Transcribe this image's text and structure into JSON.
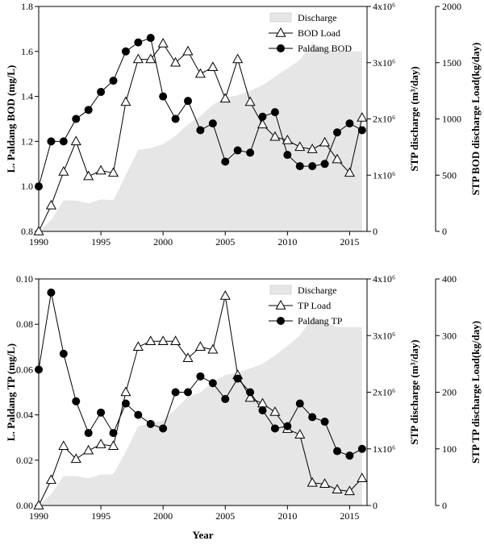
{
  "chart_data": [
    {
      "type": "line",
      "x": [
        1990,
        1991,
        1992,
        1993,
        1994,
        1995,
        1996,
        1997,
        1998,
        1999,
        2000,
        2001,
        2002,
        2003,
        2004,
        2005,
        2006,
        2007,
        2008,
        2009,
        2010,
        2011,
        2012,
        2013,
        2014,
        2015,
        2016
      ],
      "xlim": [
        1990,
        2016.4
      ],
      "xticks": [
        1990,
        1995,
        2000,
        2005,
        2010,
        2015
      ],
      "ylabel": "L. Paldang BOD (mg/L)",
      "ylim": [
        0.8,
        1.8
      ],
      "yticks": [
        "0.8",
        "1.0",
        "1.2",
        "1.4",
        "1.6",
        "1.8"
      ],
      "y2label": "STP discharge (m³/day)",
      "y2ticks": [
        "0",
        "1x10⁶",
        "2x10⁶",
        "3x10⁶",
        "4x10⁶"
      ],
      "y3label": "STP BOD discharge Load(kg/day)",
      "y3lim": [
        0,
        2000
      ],
      "y3ticks": [
        "0",
        "500",
        "1000",
        "1500",
        "2000"
      ],
      "legend_position": "top-right",
      "legend": [
        "Discharge",
        "BOD Load",
        "Paldang BOD"
      ],
      "series": [
        {
          "name": "Discharge",
          "axis": "y2",
          "marker": "area",
          "color": "#e6e6e6",
          "values": [
            0,
            0.2,
            0.55,
            0.55,
            0.5,
            0.57,
            0.55,
            1.0,
            1.45,
            1.48,
            1.55,
            1.7,
            1.9,
            2.05,
            2.25,
            2.38,
            2.42,
            2.5,
            2.6,
            2.75,
            2.9,
            3.05,
            3.35,
            3.25,
            3.2,
            3.2,
            3.2
          ]
        },
        {
          "name": "BOD Load",
          "axis": "y3",
          "marker": "open-triangle",
          "values": [
            0,
            230,
            530,
            800,
            490,
            540,
            520,
            1150,
            1530,
            1530,
            1670,
            1500,
            1600,
            1400,
            1460,
            1180,
            1530,
            1150,
            950,
            840,
            810,
            750,
            730,
            790,
            640,
            520,
            1010
          ]
        },
        {
          "name": "Paldang BOD",
          "axis": "y",
          "marker": "filled-circle",
          "values": [
            1.0,
            1.2,
            1.2,
            1.3,
            1.34,
            1.42,
            1.47,
            1.6,
            1.64,
            1.66,
            1.4,
            1.3,
            1.38,
            1.25,
            1.28,
            1.11,
            1.16,
            1.15,
            1.31,
            1.33,
            1.14,
            1.09,
            1.09,
            1.1,
            1.24,
            1.28,
            1.25
          ]
        }
      ]
    },
    {
      "type": "line",
      "x": [
        1990,
        1991,
        1992,
        1993,
        1994,
        1995,
        1996,
        1997,
        1998,
        1999,
        2000,
        2001,
        2002,
        2003,
        2004,
        2005,
        2006,
        2007,
        2008,
        2009,
        2010,
        2011,
        2012,
        2013,
        2014,
        2015,
        2016
      ],
      "xlim": [
        1990,
        2016.4
      ],
      "xticks": [
        1990,
        1995,
        2000,
        2005,
        2010,
        2015
      ],
      "xlabel": "Year",
      "ylabel": "L. Paldang TP (mg/L)",
      "ylim": [
        0,
        0.1
      ],
      "yticks": [
        "0.00",
        "0.02",
        "0.04",
        "0.06",
        "0.08",
        "0.10"
      ],
      "y2label": "STP discharge (m³/day)",
      "y2ticks": [
        "0",
        "1x10⁶",
        "2x10⁶",
        "3x10⁶",
        "4x10⁶"
      ],
      "y3label": "STP TP discharge Load(kg/day)",
      "y3lim": [
        0,
        400
      ],
      "y3ticks": [
        "0",
        "100",
        "200",
        "300",
        "400"
      ],
      "legend_position": "top-right",
      "legend": [
        "Discharge",
        "TP Load",
        "Paldang TP"
      ],
      "series": [
        {
          "name": "Discharge",
          "axis": "y2",
          "marker": "area",
          "color": "#e6e6e6",
          "values": [
            0,
            0.2,
            0.52,
            0.52,
            0.48,
            0.55,
            0.55,
            0.95,
            1.4,
            1.45,
            1.5,
            1.7,
            1.92,
            2.0,
            2.18,
            2.3,
            2.35,
            2.42,
            2.5,
            2.65,
            2.82,
            3.0,
            3.32,
            3.25,
            3.15,
            3.15,
            3.15
          ]
        },
        {
          "name": "TP Load",
          "axis": "y3",
          "marker": "open-triangle",
          "values": [
            0,
            45,
            105,
            82,
            97,
            108,
            105,
            200,
            280,
            290,
            290,
            290,
            260,
            280,
            275,
            370,
            230,
            190,
            180,
            165,
            135,
            125,
            40,
            38,
            28,
            25,
            48
          ]
        },
        {
          "name": "Paldang TP",
          "axis": "y",
          "marker": "filled-circle",
          "values": [
            0.06,
            0.094,
            0.067,
            0.046,
            0.032,
            0.041,
            0.032,
            0.045,
            0.04,
            0.036,
            0.034,
            0.05,
            0.05,
            0.057,
            0.054,
            0.047,
            0.056,
            0.05,
            0.042,
            0.034,
            0.035,
            0.045,
            0.039,
            0.037,
            0.024,
            0.022,
            0.025
          ]
        }
      ]
    }
  ]
}
